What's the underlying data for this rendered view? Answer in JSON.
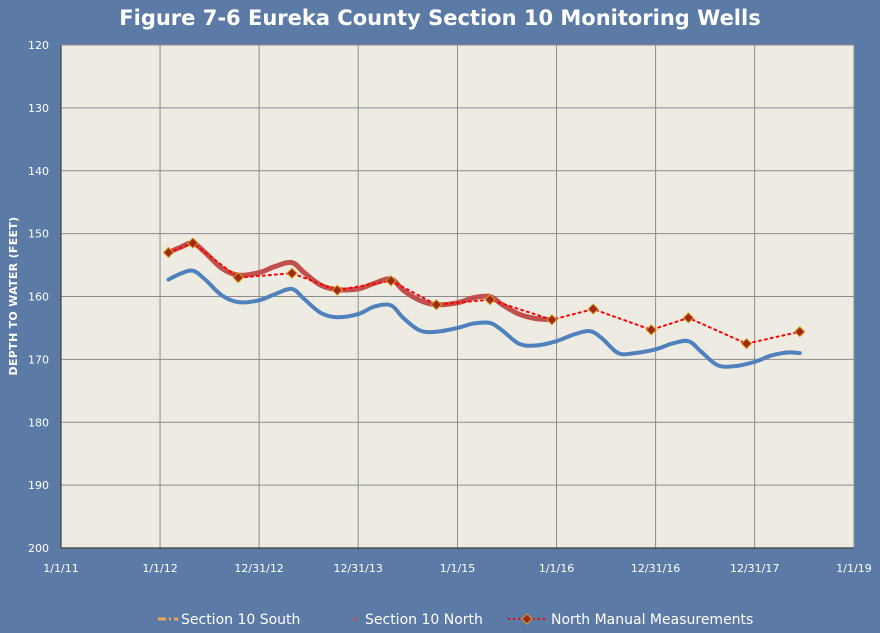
{
  "chart_data": {
    "type": "line",
    "title": "Figure 7-6 Eureka County Section 10 Monitoring Wells",
    "xlabel": "",
    "ylabel": "DEPTH TO WATER (FEET)",
    "x_tick_labels": [
      "1/1/11",
      "1/1/12",
      "12/31/12",
      "12/31/13",
      "1/1/15",
      "1/1/16",
      "12/31/16",
      "12/31/17",
      "1/1/19"
    ],
    "x_tick_dates": [
      "2011-01-01",
      "2012-01-01",
      "2012-12-31",
      "2013-12-31",
      "2015-01-01",
      "2016-01-01",
      "2016-12-31",
      "2017-12-31",
      "2019-01-01"
    ],
    "xlim": [
      "2011-01-01",
      "2019-01-01"
    ],
    "ylim": [
      120,
      200
    ],
    "y_inverted": true,
    "y_ticks": [
      120,
      130,
      140,
      150,
      160,
      170,
      180,
      190,
      200
    ],
    "grid": true,
    "legend_position": "bottom",
    "series": [
      {
        "name": "Section 10 South",
        "color": "#4f81bd",
        "legend_color": "#f4a259",
        "x": [
          "2012-02-01",
          "2012-03-15",
          "2012-05-01",
          "2012-06-15",
          "2012-08-15",
          "2012-10-15",
          "2012-12-31",
          "2013-03-01",
          "2013-05-01",
          "2013-06-15",
          "2013-08-15",
          "2013-10-15",
          "2013-12-31",
          "2014-03-01",
          "2014-05-01",
          "2014-06-15",
          "2014-08-15",
          "2014-10-15",
          "2015-01-01",
          "2015-03-01",
          "2015-05-01",
          "2015-06-15",
          "2015-08-15",
          "2015-10-15",
          "2016-01-01",
          "2016-03-01",
          "2016-05-01",
          "2016-06-15",
          "2016-08-15",
          "2016-10-15",
          "2016-12-31",
          "2017-03-01",
          "2017-05-01",
          "2017-06-15",
          "2017-08-15",
          "2017-10-15",
          "2017-12-31",
          "2018-03-01",
          "2018-05-01",
          "2018-06-15"
        ],
        "values": [
          157.3,
          156.4,
          155.9,
          157.3,
          159.8,
          160.9,
          160.6,
          159.6,
          158.8,
          160.4,
          162.6,
          163.3,
          162.8,
          161.6,
          161.4,
          163.4,
          165.4,
          165.6,
          165.0,
          164.3,
          164.2,
          165.4,
          167.5,
          167.8,
          167.1,
          166.1,
          165.5,
          166.6,
          169.0,
          169.0,
          168.4,
          167.5,
          167.1,
          168.7,
          170.9,
          171.1,
          170.4,
          169.4,
          168.9,
          169.0
        ]
      },
      {
        "name": "Section 10 North",
        "color": "#c0504d",
        "x": [
          "2012-02-01",
          "2012-03-15",
          "2012-05-01",
          "2012-06-15",
          "2012-08-15",
          "2012-10-15",
          "2012-12-31",
          "2013-03-01",
          "2013-05-01",
          "2013-06-15",
          "2013-08-15",
          "2013-10-15",
          "2013-12-31",
          "2014-03-01",
          "2014-05-01",
          "2014-06-15",
          "2014-08-15",
          "2014-10-15",
          "2015-01-01",
          "2015-03-01",
          "2015-05-01",
          "2015-06-15",
          "2015-08-15",
          "2015-10-15",
          "2015-12-15"
        ],
        "values": [
          153.0,
          152.2,
          151.5,
          153.0,
          155.5,
          156.6,
          156.2,
          155.2,
          154.6,
          156.2,
          158.2,
          158.9,
          158.8,
          157.9,
          157.2,
          159.0,
          160.6,
          161.3,
          161.0,
          160.2,
          160.0,
          161.3,
          162.8,
          163.5,
          163.7
        ]
      },
      {
        "name": "North Manual Measurements",
        "color": "#ff0000",
        "marker_color": "#a02818",
        "x": [
          "2012-02-01",
          "2012-05-01",
          "2012-10-15",
          "2013-05-01",
          "2013-10-15",
          "2014-05-01",
          "2014-10-15",
          "2015-05-01",
          "2015-12-15",
          "2016-05-15",
          "2016-12-15",
          "2017-05-01",
          "2017-12-01",
          "2018-06-15"
        ],
        "values": [
          153.0,
          151.5,
          157.0,
          156.3,
          159.0,
          157.5,
          161.3,
          160.5,
          163.7,
          162.0,
          165.3,
          163.4,
          167.5,
          165.6
        ]
      }
    ]
  }
}
